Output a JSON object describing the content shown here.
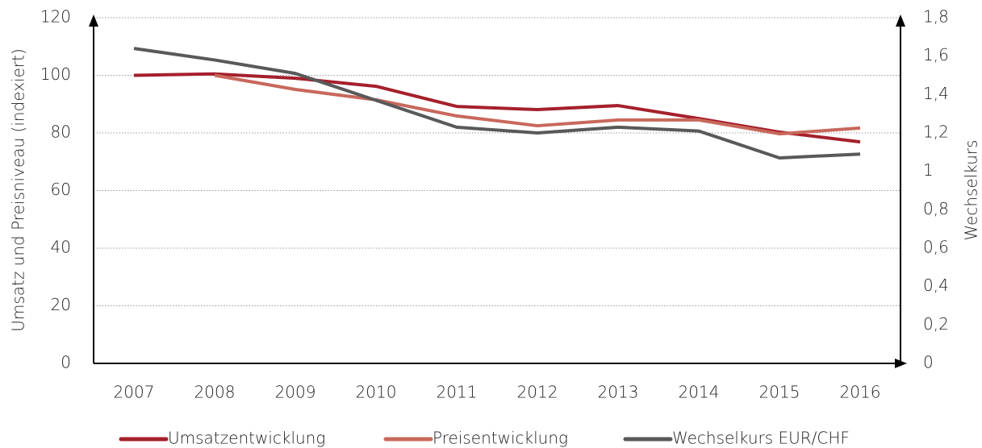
{
  "chart_data": {
    "type": "line",
    "y_label": "Umsatz und Preisniveau (indexiert)",
    "y2_label": "Wechselkurs",
    "categories": [
      "2007",
      "2008",
      "2009",
      "2010",
      "2011",
      "2012",
      "2013",
      "2014",
      "2015",
      "2016"
    ],
    "series": [
      {
        "name": "Umsatzentwicklung",
        "color": "#a5202c",
        "values": [
          100,
          100.5,
          99,
          96.2,
          89.2,
          88.1,
          89.5,
          85,
          80.3,
          76.9
        ]
      },
      {
        "name": "Preisentwicklung",
        "color": "#c8685c",
        "values": [
          null,
          100,
          95.1,
          91.5,
          85.9,
          82.5,
          84.5,
          84.5,
          79.7,
          81.7
        ]
      },
      {
        "name": "Wechselkurs EUR/CHF",
        "color": "#595959",
        "axis": "y2",
        "values": [
          1.64,
          1.58,
          1.51,
          1.37,
          1.23,
          1.2,
          1.23,
          1.21,
          1.07,
          1.09
        ]
      }
    ],
    "ylim": [
      0,
      120
    ],
    "yticks": [
      0,
      20,
      40,
      60,
      80,
      100,
      120
    ],
    "y2lim": [
      0,
      1.8
    ],
    "y2ticks": [
      0,
      {
        "value": 0.2,
        "label": "0,2"
      },
      {
        "value": 0.4,
        "label": "0,4"
      },
      {
        "value": 0.6,
        "label": "0,6"
      },
      {
        "value": 0.8,
        "label": "0,8"
      },
      1,
      {
        "value": 1.2,
        "label": "1,2"
      },
      {
        "value": 1.4,
        "label": "1,4"
      },
      {
        "value": 1.6,
        "label": "1,6"
      },
      {
        "value": 1.8,
        "label": "1,8"
      }
    ],
    "grid": true,
    "legend": "bottom"
  }
}
